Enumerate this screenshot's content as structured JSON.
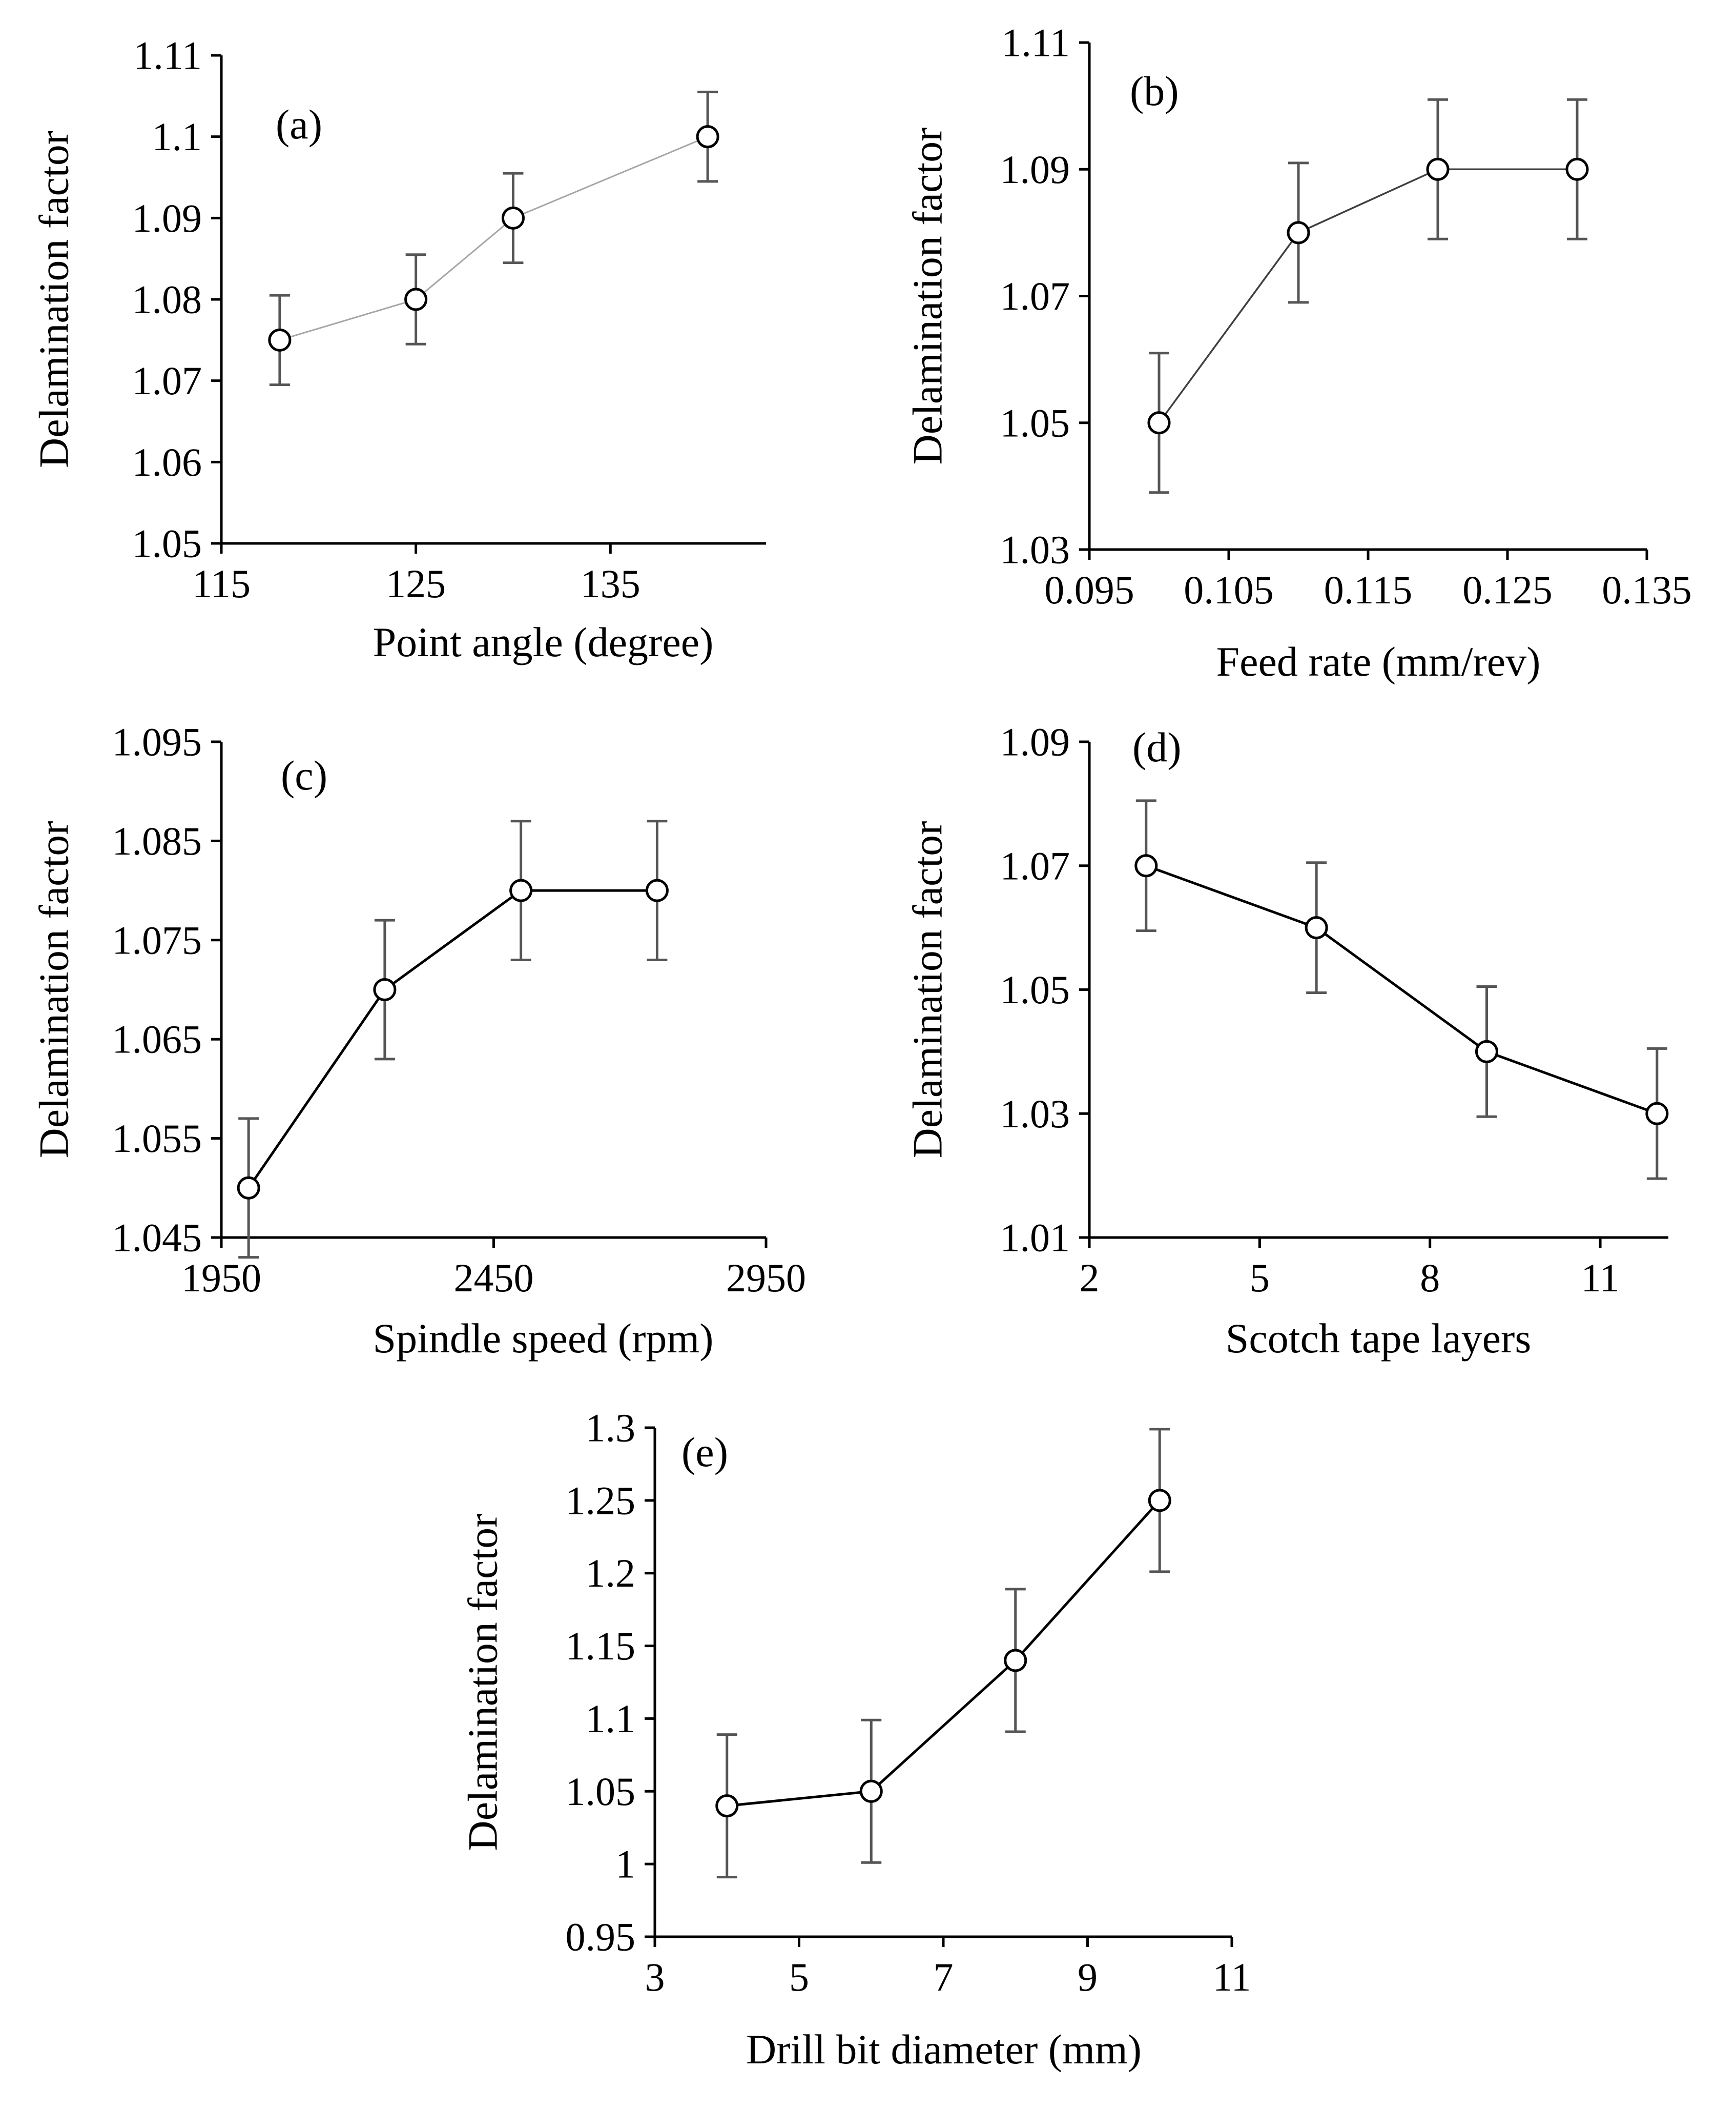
{
  "figure": {
    "background": "#ffffff"
  },
  "chart_data": [
    {
      "type": "line",
      "panel_label": "(a)",
      "xlabel": "Point angle (degree)",
      "ylabel": "Delamination factor",
      "xlim": [
        115,
        143
      ],
      "ylim": [
        1.05,
        1.11
      ],
      "xticks": [
        115,
        125,
        135
      ],
      "xtick_labels": [
        "115",
        "125",
        "135"
      ],
      "yticks": [
        1.05,
        1.06,
        1.07,
        1.08,
        1.09,
        1.1,
        1.11
      ],
      "ytick_labels": [
        "1.05",
        "1.06",
        "1.07",
        "1.08",
        "1.09",
        "1.1",
        "1.11"
      ],
      "series": [
        {
          "name": "Delamination factor",
          "line_color": "#a6a6a6",
          "marker": "open-circle",
          "x": [
            118,
            125,
            130,
            140
          ],
          "y": [
            1.075,
            1.08,
            1.09,
            1.1
          ],
          "error": [
            0.0055,
            0.0055,
            0.0055,
            0.0055
          ]
        }
      ]
    },
    {
      "type": "line",
      "panel_label": "(b)",
      "xlabel": "Feed rate (mm/rev)",
      "ylabel": "Delamination factor",
      "xlim": [
        0.095,
        0.135
      ],
      "ylim": [
        1.03,
        1.11
      ],
      "xticks": [
        0.095,
        0.105,
        0.115,
        0.125,
        0.135
      ],
      "xtick_labels": [
        "0.095",
        "0.105",
        "0.115",
        "0.125",
        "0.135"
      ],
      "yticks": [
        1.03,
        1.05,
        1.07,
        1.09,
        1.11
      ],
      "ytick_labels": [
        "1.03",
        "1.05",
        "1.07",
        "1.09",
        "1.11"
      ],
      "series": [
        {
          "name": "Delamination factor",
          "line_color": "#404040",
          "marker": "open-circle",
          "x": [
            0.1,
            0.11,
            0.12,
            0.13
          ],
          "y": [
            1.05,
            1.08,
            1.09,
            1.09
          ],
          "error": [
            0.011,
            0.011,
            0.011,
            0.011
          ]
        }
      ]
    },
    {
      "type": "line",
      "panel_label": "(c)",
      "xlabel": "Spindle speed (rpm)",
      "ylabel": "Delamination factor",
      "xlim": [
        1950,
        2950
      ],
      "ylim": [
        1.045,
        1.095
      ],
      "xticks": [
        1950,
        2450,
        2950
      ],
      "xtick_labels": [
        "1950",
        "2450",
        "2950"
      ],
      "yticks": [
        1.045,
        1.055,
        1.065,
        1.075,
        1.085,
        1.095
      ],
      "ytick_labels": [
        "1.045",
        "1.055",
        "1.065",
        "1.075",
        "1.085",
        "1.095"
      ],
      "series": [
        {
          "name": "Delamination factor",
          "line_color": "#000000",
          "marker": "open-circle",
          "x": [
            2000,
            2250,
            2500,
            2750
          ],
          "y": [
            1.05,
            1.07,
            1.08,
            1.08
          ],
          "error": [
            0.007,
            0.007,
            0.007,
            0.007
          ]
        }
      ]
    },
    {
      "type": "line",
      "panel_label": "(d)",
      "xlabel": "Scotch tape layers",
      "ylabel": "Delamination factor",
      "xlim": [
        2,
        12.2
      ],
      "ylim": [
        1.01,
        1.09
      ],
      "xticks": [
        2,
        5,
        8,
        11
      ],
      "xtick_labels": [
        "2",
        "5",
        "8",
        "11"
      ],
      "yticks": [
        1.01,
        1.03,
        1.05,
        1.07,
        1.09
      ],
      "ytick_labels": [
        "1.01",
        "1.03",
        "1.05",
        "1.07",
        "1.09"
      ],
      "series": [
        {
          "name": "Delamination factor",
          "line_color": "#000000",
          "marker": "open-circle",
          "x": [
            3,
            6,
            9,
            12
          ],
          "y": [
            1.07,
            1.06,
            1.04,
            1.03
          ],
          "error": [
            0.0105,
            0.0105,
            0.0105,
            0.0105
          ]
        }
      ]
    },
    {
      "type": "line",
      "panel_label": "(e)",
      "xlabel": "Drill bit diameter (mm)",
      "ylabel": "Delamination factor",
      "xlim": [
        3,
        11
      ],
      "ylim": [
        0.95,
        1.3
      ],
      "xticks": [
        3,
        5,
        7,
        9,
        11
      ],
      "xtick_labels": [
        "3",
        "5",
        "7",
        "9",
        "11"
      ],
      "yticks": [
        0.95,
        1,
        1.05,
        1.1,
        1.15,
        1.2,
        1.25,
        1.3
      ],
      "ytick_labels": [
        "0.95",
        "1",
        "1.05",
        "1.1",
        "1.15",
        "1.2",
        "1.25",
        "1.3"
      ],
      "series": [
        {
          "name": "Delamination factor",
          "line_color": "#000000",
          "marker": "open-circle",
          "x": [
            4,
            6,
            8,
            10
          ],
          "y": [
            1.04,
            1.05,
            1.14,
            1.25
          ],
          "error": [
            0.049,
            0.049,
            0.049,
            0.049
          ]
        }
      ]
    }
  ]
}
